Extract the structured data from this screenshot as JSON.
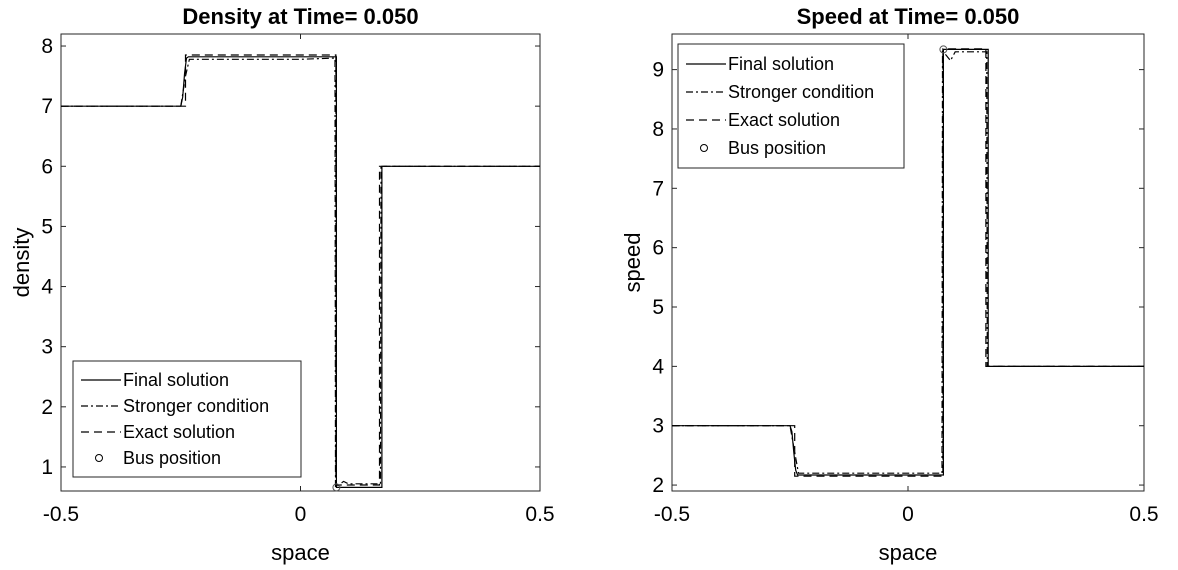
{
  "chart_data": [
    {
      "type": "line",
      "title": "Density at Time= 0.050",
      "xlabel": "space",
      "ylabel": "density",
      "xlim": [
        -0.5,
        0.5
      ],
      "ylim": [
        0.6,
        8.2
      ],
      "xticks": [
        "-0.5",
        "0",
        "0.5"
      ],
      "yticks": [
        "1",
        "2",
        "3",
        "4",
        "5",
        "6",
        "7",
        "8"
      ],
      "grid": false,
      "legend_position": "bottom-left",
      "series": [
        {
          "name": "Final solution",
          "style": "solid",
          "x": [
            -0.5,
            -0.25,
            -0.246,
            -0.242,
            -0.238,
            -0.234,
            0.07,
            0.075,
            0.075,
            0.167,
            0.17,
            0.17,
            0.5
          ],
          "y": [
            7.0,
            7.0,
            7.15,
            7.55,
            7.8,
            7.82,
            7.82,
            7.82,
            0.66,
            0.66,
            0.66,
            6.0,
            6.0
          ]
        },
        {
          "name": "Stronger condition",
          "style": "dashdot",
          "x": [
            -0.5,
            -0.25,
            -0.24,
            -0.232,
            0.0,
            0.072,
            0.073,
            0.08,
            0.09,
            0.1,
            0.167,
            0.168,
            0.5
          ],
          "y": [
            7.0,
            7.0,
            7.5,
            7.78,
            7.78,
            7.8,
            0.66,
            0.7,
            0.76,
            0.72,
            0.72,
            6.0,
            6.0
          ]
        },
        {
          "name": "Exact solution",
          "style": "dashed",
          "x": [
            -0.5,
            -0.24,
            -0.24,
            0.074,
            0.074,
            0.165,
            0.165,
            0.5
          ],
          "y": [
            7.0,
            7.0,
            7.85,
            7.85,
            0.7,
            0.7,
            6.0,
            6.0
          ]
        }
      ],
      "bus_position": {
        "name": "Bus position",
        "x": 0.075,
        "y": 0.66
      },
      "legend": [
        "Final solution",
        "Stronger condition",
        "Exact solution",
        "Bus position"
      ]
    },
    {
      "type": "line",
      "title": "Speed at Time= 0.050",
      "xlabel": "space",
      "ylabel": "speed",
      "xlim": [
        -0.5,
        0.5
      ],
      "ylim": [
        1.9,
        9.6
      ],
      "xticks": [
        "-0.5",
        "0",
        "0.5"
      ],
      "yticks": [
        "2",
        "3",
        "4",
        "5",
        "6",
        "7",
        "8",
        "9"
      ],
      "grid": false,
      "legend_position": "top-left",
      "series": [
        {
          "name": "Final solution",
          "style": "solid",
          "x": [
            -0.5,
            -0.25,
            -0.246,
            -0.242,
            -0.238,
            -0.234,
            0.07,
            0.075,
            0.075,
            0.167,
            0.17,
            0.17,
            0.5
          ],
          "y": [
            3.0,
            3.0,
            2.9,
            2.55,
            2.25,
            2.17,
            2.17,
            2.17,
            9.34,
            9.34,
            9.34,
            4.0,
            4.0
          ]
        },
        {
          "name": "Stronger condition",
          "style": "dashdot",
          "x": [
            -0.5,
            -0.25,
            -0.24,
            -0.232,
            0.0,
            0.072,
            0.073,
            0.08,
            0.09,
            0.1,
            0.167,
            0.168,
            0.5
          ],
          "y": [
            3.0,
            3.0,
            2.55,
            2.2,
            2.2,
            2.2,
            9.3,
            9.25,
            9.15,
            9.3,
            9.3,
            4.0,
            4.0
          ]
        },
        {
          "name": "Exact solution",
          "style": "dashed",
          "x": [
            -0.5,
            -0.24,
            -0.24,
            0.074,
            0.074,
            0.165,
            0.165,
            0.5
          ],
          "y": [
            3.0,
            3.0,
            2.15,
            2.15,
            9.35,
            9.35,
            4.0,
            4.0
          ]
        }
      ],
      "bus_position": {
        "name": "Bus position",
        "x": 0.075,
        "y": 9.34
      },
      "legend": [
        "Final solution",
        "Stronger condition",
        "Exact solution",
        "Bus position"
      ]
    }
  ]
}
